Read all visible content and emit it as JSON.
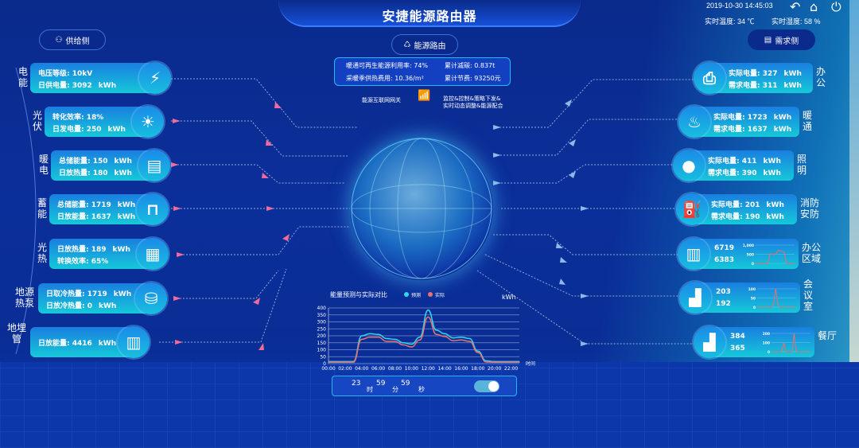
{
  "header": {
    "title": "安捷能源路由器",
    "datetime": "2019-10-30 14:45:03",
    "temperature_label": "实时温度: 34 ℃",
    "humidity_label": "实时湿度: 58 %",
    "icons": [
      "back-icon",
      "home-icon",
      "power-icon"
    ]
  },
  "nav": {
    "supply": "供给侧",
    "router": "能源路由",
    "demand": "需求侧"
  },
  "info": {
    "renewable": "暖通可再生能源利用率: 74%",
    "carbon": "累计减碳: 0.837t",
    "heating_cost": "采暖季供热费用: 10.36/m²",
    "savings": "累计节费: 93250元"
  },
  "gateway": {
    "left": "能源互联网网关",
    "right1": "监控&控制&策略下发&",
    "right2": "实时动态调整&能源配合"
  },
  "supply": [
    {
      "name": "电能",
      "l1": "电压等级: ",
      "v1": "10kV",
      "u1": "",
      "l2": "日供电量: ",
      "v2": "3092",
      "u2": "kWh",
      "icon": "lightning-icon",
      "glyph": "⚡"
    },
    {
      "name": "光伏",
      "l1": "转化效率: ",
      "v1": "18%",
      "u1": "",
      "l2": "日发电量: ",
      "v2": "250",
      "u2": "kWh",
      "icon": "sun-icon",
      "glyph": "☀"
    },
    {
      "name": "暖电",
      "l1": "总储能量: ",
      "v1": "150",
      "u1": "kWh",
      "l2": "日放热量: ",
      "v2": "180",
      "u2": "kWh",
      "icon": "meter-icon",
      "glyph": "▤"
    },
    {
      "name": "蓄能",
      "l1": "总储能量: ",
      "v1": "1719",
      "u1": "kWh",
      "l2": "日放能量: ",
      "v2": "1637",
      "u2": "kWh",
      "icon": "pipe-icon",
      "glyph": "⊓"
    },
    {
      "name": "光热",
      "l1": "日放热量: ",
      "v1": "189",
      "u1": "kWh",
      "l2": "转换效率: ",
      "v2": "65%",
      "u2": "",
      "icon": "solar-panel-icon",
      "glyph": "▦"
    },
    {
      "name": "地源热泵",
      "l1": "日取冷热量: ",
      "v1": "1719",
      "u1": "kWh",
      "l2": "日放冷热量: ",
      "v2": "0",
      "u2": "kWh",
      "icon": "tank-icon",
      "glyph": "⛁"
    },
    {
      "name": "地埋管",
      "l1": "日放能量: ",
      "v1": "4416",
      "u1": "kWh",
      "l2": "",
      "v2": "",
      "u2": "",
      "icon": "buried-pipe-icon",
      "glyph": "▥"
    }
  ],
  "demand": [
    {
      "name": "办公",
      "l1": "实际电量: ",
      "v1": "327",
      "u1": "kWh",
      "l2": "需求电量: ",
      "v2": "311",
      "u2": "kWh",
      "icon": "printer-icon",
      "glyph": "⎙"
    },
    {
      "name": "暖通",
      "l1": "实际电量: ",
      "v1": "1723",
      "u1": "kWh",
      "l2": "需求电量: ",
      "v2": "1637",
      "u2": "kWh",
      "icon": "heating-icon",
      "glyph": "♨"
    },
    {
      "name": "照明",
      "l1": "实际电量: ",
      "v1": "411",
      "u1": "kWh",
      "l2": "需求电量: ",
      "v2": "390",
      "u2": "kWh",
      "icon": "bulb-icon",
      "glyph": "●"
    },
    {
      "name": "消防安防",
      "l1": "实际电量: ",
      "v1": "201",
      "u1": "kWh",
      "l2": "需求电量: ",
      "v2": "190",
      "u2": "kWh",
      "icon": "extinguisher-icon",
      "glyph": "⛽"
    }
  ],
  "zones": [
    {
      "name": "办公区域",
      "v1": "6719",
      "v2": "6383",
      "icon": "building-icon",
      "glyph": "▥",
      "yticks": [
        "0",
        "500",
        "1,000"
      ],
      "ymax": 1000,
      "values": [
        0,
        0,
        0,
        0,
        0,
        0,
        0,
        520,
        500,
        480,
        520,
        720,
        680,
        650,
        600,
        0,
        0,
        0,
        0,
        0
      ]
    },
    {
      "name": "会议室",
      "v1": "203",
      "v2": "192",
      "icon": "desk-icon",
      "glyph": "▟",
      "yticks": [
        "0",
        "50",
        "100"
      ],
      "ymax": 100,
      "values": [
        0,
        0,
        0,
        0,
        0,
        0,
        0,
        0,
        20,
        100,
        20,
        0,
        0,
        0,
        0,
        0,
        0,
        0,
        0,
        0
      ]
    },
    {
      "name": "餐厅",
      "v1": "384",
      "v2": "365",
      "icon": "desk-icon",
      "glyph": "▟",
      "yticks": [
        "0",
        "100",
        "200"
      ],
      "ymax": 200,
      "values": [
        0,
        0,
        0,
        0,
        0,
        0,
        100,
        0,
        0,
        0,
        0,
        200,
        0,
        0,
        0,
        0,
        0,
        0,
        0,
        0
      ]
    }
  ],
  "chart_data": {
    "type": "line",
    "title": "能量预测与实际对比",
    "unit": "kWh",
    "xlabel": "时间",
    "ylim": [
      0,
      400
    ],
    "yticks": [
      0,
      50,
      100,
      150,
      200,
      250,
      300,
      350,
      400
    ],
    "categories": [
      "00:00",
      "01:00",
      "02:00",
      "03:00",
      "04:00",
      "05:00",
      "06:00",
      "07:00",
      "08:00",
      "09:00",
      "10:00",
      "11:00",
      "12:00",
      "13:00",
      "14:00",
      "15:00",
      "16:00",
      "17:00",
      "18:00",
      "19:00",
      "20:00",
      "21:00",
      "22:00",
      "23:00"
    ],
    "xticks": [
      "00:00",
      "02:00",
      "04:00",
      "06:00",
      "08:00",
      "10:00",
      "12:00",
      "14:00",
      "16:00",
      "18:00",
      "20:00",
      "22:00"
    ],
    "series": [
      {
        "name": "预测",
        "color": "#2fd8f0",
        "values": [
          15,
          15,
          15,
          15,
          200,
          215,
          210,
          180,
          175,
          150,
          140,
          190,
          385,
          240,
          215,
          185,
          190,
          180,
          90,
          20,
          15,
          15,
          15,
          15
        ]
      },
      {
        "name": "实际",
        "color": "#e8706e",
        "values": [
          10,
          10,
          10,
          10,
          175,
          190,
          190,
          160,
          160,
          135,
          120,
          170,
          335,
          210,
          195,
          165,
          170,
          160,
          80,
          12,
          10,
          10,
          10,
          10
        ]
      }
    ],
    "legend": "top",
    "grid": true
  },
  "timer": {
    "h": "23",
    "hl": "时",
    "m": "59",
    "ml": "分",
    "s": "59",
    "sl": "秒",
    "toggle_on": true
  }
}
